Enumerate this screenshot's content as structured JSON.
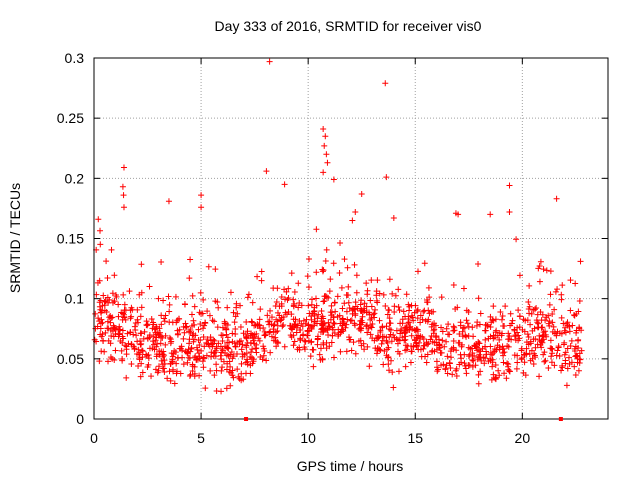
{
  "chart_data": {
    "type": "scatter",
    "title": "Day 333 of 2016, SRMTID for receiver vis0",
    "xlabel": "GPS time / hours",
    "ylabel": "SRMTID / TECUs",
    "xlim": [
      0,
      24
    ],
    "ylim": [
      0,
      0.3
    ],
    "x_ticks": [
      0,
      5,
      10,
      15,
      20
    ],
    "x_tick_labels": [
      "0",
      "5",
      "10",
      "15",
      "20"
    ],
    "y_ticks": [
      0,
      0.05,
      0.1,
      0.15,
      0.2,
      0.25,
      0.3
    ],
    "y_tick_labels": [
      "0",
      "0.05",
      "0.1",
      "0.15",
      "0.2",
      "0.25",
      "0.3"
    ],
    "grid": true,
    "marker": "plus",
    "color": "#ff0000",
    "x_range_of_points": [
      0,
      22.8
    ],
    "baseline_markers_x": [
      7.1,
      21.8
    ],
    "outliers": [
      {
        "x": 8.2,
        "y": 0.297
      },
      {
        "x": 13.6,
        "y": 0.279
      },
      {
        "x": 10.7,
        "y": 0.241
      },
      {
        "x": 10.8,
        "y": 0.235
      },
      {
        "x": 10.75,
        "y": 0.227
      },
      {
        "x": 10.85,
        "y": 0.22
      },
      {
        "x": 10.9,
        "y": 0.213
      },
      {
        "x": 1.4,
        "y": 0.209
      },
      {
        "x": 8.05,
        "y": 0.206
      },
      {
        "x": 10.7,
        "y": 0.205
      },
      {
        "x": 13.65,
        "y": 0.201
      },
      {
        "x": 11.2,
        "y": 0.199
      },
      {
        "x": 1.35,
        "y": 0.193
      },
      {
        "x": 19.4,
        "y": 0.194
      },
      {
        "x": 8.9,
        "y": 0.195
      },
      {
        "x": 12.5,
        "y": 0.187
      },
      {
        "x": 5.0,
        "y": 0.186
      },
      {
        "x": 1.38,
        "y": 0.186
      },
      {
        "x": 21.6,
        "y": 0.183
      },
      {
        "x": 3.5,
        "y": 0.181
      },
      {
        "x": 1.4,
        "y": 0.176
      },
      {
        "x": 5.0,
        "y": 0.176
      },
      {
        "x": 16.9,
        "y": 0.171
      },
      {
        "x": 17.0,
        "y": 0.17
      },
      {
        "x": 18.5,
        "y": 0.17
      },
      {
        "x": 19.4,
        "y": 0.172
      },
      {
        "x": 12.2,
        "y": 0.172
      },
      {
        "x": 0.2,
        "y": 0.166
      },
      {
        "x": 14.0,
        "y": 0.167
      }
    ],
    "series_profile": {
      "description": "dense scatter of SRMTID samples across the day; typical values 0.03-0.15 TECU",
      "approx_mean_by_hour": [
        {
          "x": 0,
          "y": 0.085
        },
        {
          "x": 1,
          "y": 0.075
        },
        {
          "x": 2,
          "y": 0.065
        },
        {
          "x": 3,
          "y": 0.062
        },
        {
          "x": 4,
          "y": 0.058
        },
        {
          "x": 5,
          "y": 0.06
        },
        {
          "x": 6,
          "y": 0.058
        },
        {
          "x": 7,
          "y": 0.055
        },
        {
          "x": 8,
          "y": 0.075
        },
        {
          "x": 9,
          "y": 0.09
        },
        {
          "x": 10,
          "y": 0.075
        },
        {
          "x": 11,
          "y": 0.08
        },
        {
          "x": 12,
          "y": 0.085
        },
        {
          "x": 13,
          "y": 0.075
        },
        {
          "x": 14,
          "y": 0.07
        },
        {
          "x": 15,
          "y": 0.075
        },
        {
          "x": 16,
          "y": 0.065
        },
        {
          "x": 17,
          "y": 0.058
        },
        {
          "x": 18,
          "y": 0.056
        },
        {
          "x": 19,
          "y": 0.058
        },
        {
          "x": 20,
          "y": 0.06
        },
        {
          "x": 21,
          "y": 0.07
        },
        {
          "x": 22,
          "y": 0.065
        },
        {
          "x": 22.8,
          "y": 0.06
        }
      ]
    }
  }
}
